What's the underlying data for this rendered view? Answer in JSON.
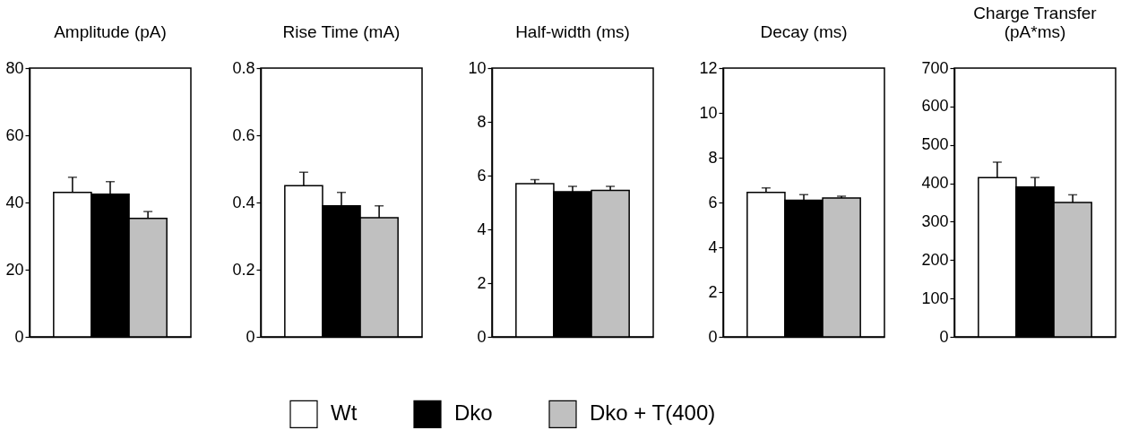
{
  "chart_data": [
    {
      "type": "bar",
      "title": "Amplitude (pA)",
      "categories": [
        null
      ],
      "ylim": [
        0,
        80
      ],
      "yticks": [
        0,
        20,
        40,
        60,
        80
      ],
      "legend": "bottom",
      "tick_labels": "y",
      "series": [
        {
          "name": "Wt",
          "color": "#ffffff",
          "values": [
            43
          ],
          "errors": [
            [
              43,
              47.5
            ]
          ]
        },
        {
          "name": "Dko",
          "color": "#000000",
          "values": [
            42.5
          ],
          "errors": [
            [
              42.5,
              46.2
            ]
          ]
        },
        {
          "name": "Dko + T(400)",
          "color": "#c0c0c0",
          "values": [
            35.3
          ],
          "errors": [
            [
              35.3,
              37.3
            ]
          ]
        }
      ]
    },
    {
      "type": "bar",
      "title": "Rise Time (mA)",
      "categories": [
        null
      ],
      "ylim": [
        0,
        0.8
      ],
      "yticks": [
        0,
        0.2,
        0.4,
        0.6,
        0.8
      ],
      "tick_labels": "y",
      "series": [
        {
          "color": "#ffffff",
          "values": [
            0.45
          ],
          "errors": [
            [
              0.45,
              0.49
            ]
          ]
        },
        {
          "color": "#000000",
          "values": [
            0.39
          ],
          "errors": [
            [
              0.39,
              0.43
            ]
          ]
        },
        {
          "color": "#c0c0c0",
          "values": [
            0.355
          ],
          "errors": [
            [
              0.355,
              0.39
            ]
          ]
        }
      ]
    },
    {
      "type": "bar",
      "title": "Half-width (ms)",
      "categories": [
        null
      ],
      "ylim": [
        0,
        10
      ],
      "yticks": [
        0,
        2,
        4,
        6,
        8,
        10
      ],
      "tick_labels": "y",
      "series": [
        {
          "color": "#ffffff",
          "values": [
            5.7
          ],
          "errors": [
            [
              5.7,
              5.85
            ]
          ]
        },
        {
          "color": "#000000",
          "values": [
            5.4
          ],
          "errors": [
            [
              5.4,
              5.6
            ]
          ]
        },
        {
          "color": "#c0c0c0",
          "values": [
            5.45
          ],
          "errors": [
            [
              5.45,
              5.6
            ]
          ]
        }
      ]
    },
    {
      "type": "bar",
      "title": "Decay (ms)",
      "categories": [
        null
      ],
      "ylim": [
        0,
        12
      ],
      "yticks": [
        0,
        2,
        4,
        6,
        8,
        10,
        12
      ],
      "tick_labels": "y",
      "series": [
        {
          "color": "#ffffff",
          "values": [
            6.45
          ],
          "errors": [
            [
              6.45,
              6.65
            ]
          ]
        },
        {
          "color": "#000000",
          "values": [
            6.1
          ],
          "errors": [
            [
              6.1,
              6.35
            ]
          ]
        },
        {
          "color": "#c0c0c0",
          "values": [
            6.2
          ],
          "errors": [
            [
              6.2,
              6.28
            ]
          ]
        }
      ]
    },
    {
      "type": "bar",
      "title": "Charge Transfer\n(pA*ms)",
      "categories": [
        null
      ],
      "ylim": [
        0,
        700
      ],
      "yticks": [
        0,
        100,
        200,
        300,
        400,
        500,
        600,
        700
      ],
      "tick_labels": "y",
      "series": [
        {
          "color": "#ffffff",
          "values": [
            415
          ],
          "errors": [
            [
              415,
              455
            ]
          ]
        },
        {
          "color": "#000000",
          "values": [
            390
          ],
          "errors": [
            [
              390,
              415
            ]
          ]
        },
        {
          "color": "#c0c0c0",
          "values": [
            350
          ],
          "errors": [
            [
              350,
              370
            ]
          ]
        }
      ]
    }
  ]
}
